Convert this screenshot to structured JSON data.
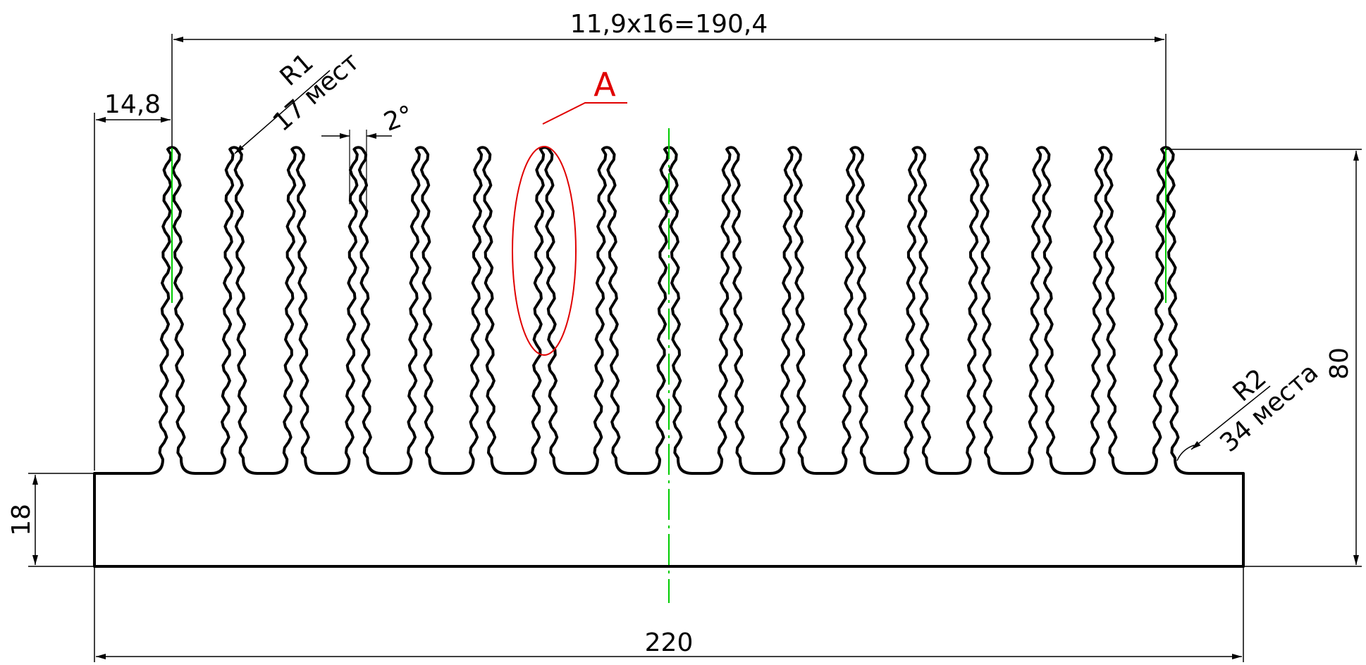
{
  "colors": {
    "outline": "#000000",
    "centerline": "#00cc00",
    "callout": "#e00000",
    "background": "#ffffff"
  },
  "drawing": {
    "fin_count": 17,
    "dimensions": {
      "fin_spacing_total": "11,9x16=190,4",
      "edge_offset": "14,8",
      "tip_radius_value": "R1",
      "tip_radius_count": "17 мест",
      "draft_angle": "2°",
      "callout_label": "A",
      "root_radius_value": "R2",
      "root_radius_count": "34 места",
      "total_height": "80",
      "base_thickness": "18",
      "total_width": "220"
    }
  }
}
